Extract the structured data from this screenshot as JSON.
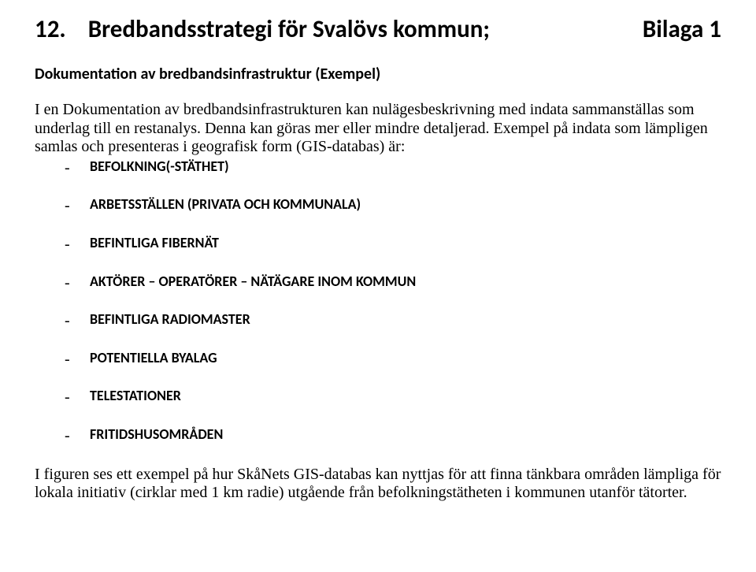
{
  "header": {
    "number": "12.",
    "title": "Bredbandsstrategi för Svalövs kommun;",
    "appendix": "Bilaga 1"
  },
  "subheading": "Dokumentation av bredbandsinfrastruktur (Exempel)",
  "intro": "I en Dokumentation av bredbandsinfrastrukturen kan nulägesbeskrivning med indata sammanställas som underlag till en restanalys. Denna kan göras mer eller mindre detaljerad. Exempel på indata som lämpligen samlas och presenteras i geografisk form (GIS-databas) är:",
  "list": [
    "BEFOLKNING(-STÄTHET)",
    "ARBETSSTÄLLEN (PRIVATA OCH KOMMUNALA)",
    "BEFINTLIGA FIBERNÄT",
    "AKTÖRER – OPERATÖRER – NÄTÄGARE INOM KOMMUN",
    "BEFINTLIGA RADIOMASTER",
    "POTENTIELLA BYALAG",
    "TELESTATIONER",
    "FRITIDSHUSOMRÅDEN"
  ],
  "footer": "I figuren ses ett exempel på hur SkåNets GIS-databas kan nyttjas för att finna tänkbara områden lämpliga för lokala initiativ (cirklar med 1 km radie) utgående från befolkningstätheten i kommunen utanför tätorter."
}
